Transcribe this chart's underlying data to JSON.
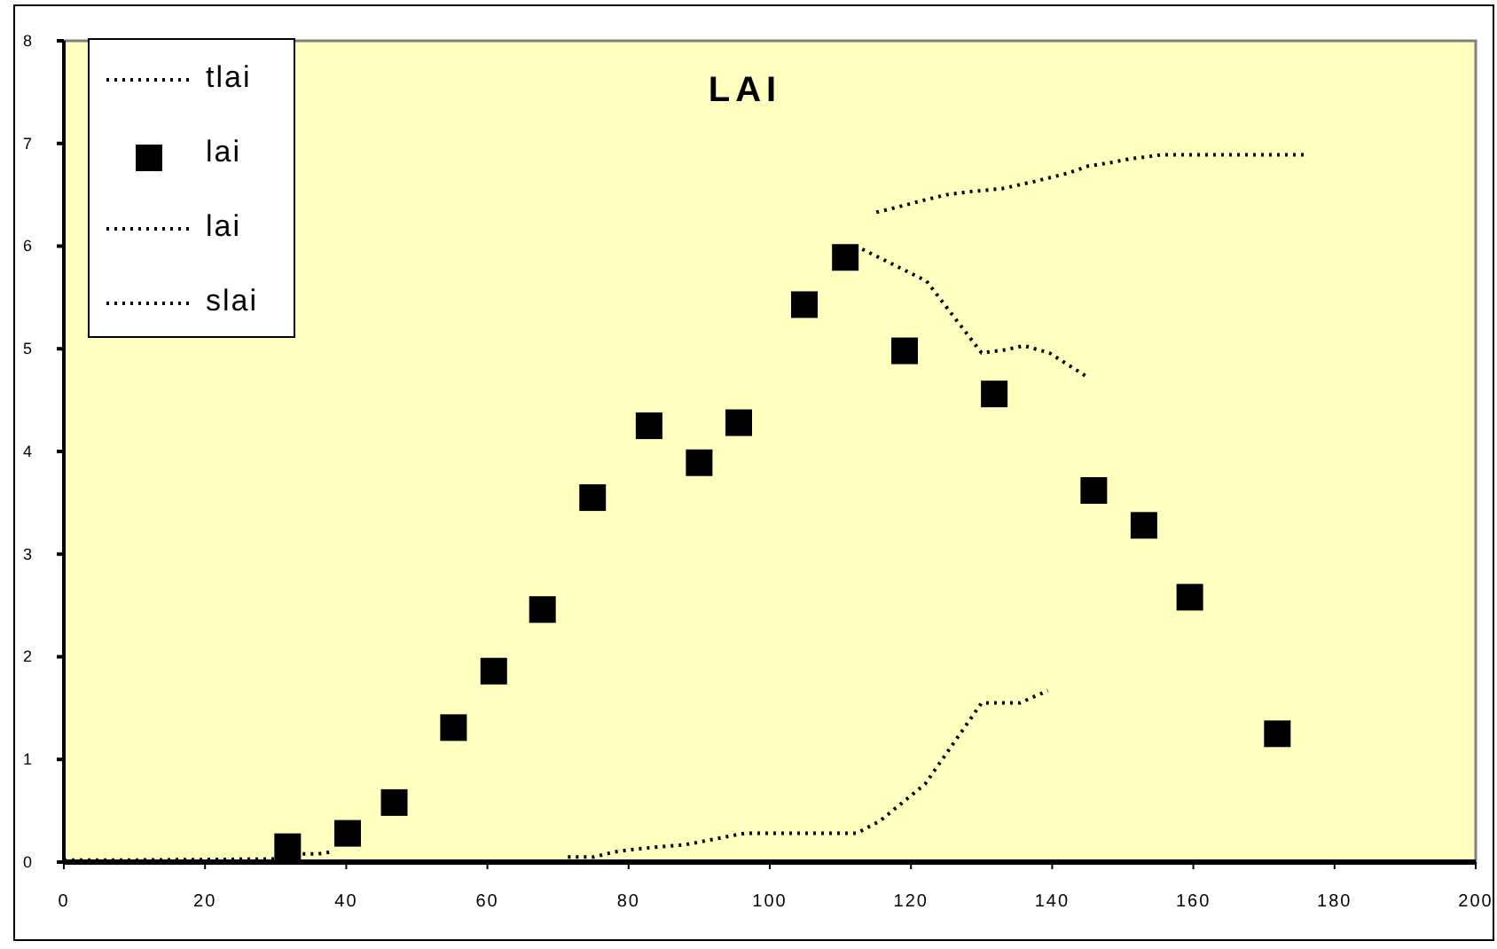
{
  "chart_data": {
    "type": "line",
    "title": "LAI",
    "xlim": [
      0,
      200
    ],
    "xticks": [
      0,
      20,
      40,
      60,
      80,
      100,
      120,
      140,
      160,
      180,
      200
    ],
    "ylim": [
      0,
      8
    ],
    "yticks": [
      0,
      1,
      2,
      3,
      4,
      5,
      6,
      7,
      8
    ],
    "grid": false,
    "legend": "top left",
    "line_style": "dotted",
    "series": [
      {
        "name": "tlai",
        "color": "#000000",
        "x": [
          115.1,
          118.1,
          121.4,
          125,
          128.3,
          132.9,
          137.5,
          142.2,
          145.1,
          148,
          151,
          153.4,
          155.5,
          176
        ],
        "values": [
          6.33,
          6.38,
          6.44,
          6.5,
          6.53,
          6.56,
          6.63,
          6.71,
          6.78,
          6.81,
          6.85,
          6.87,
          6.89,
          6.89
        ]
      },
      {
        "name": "lai",
        "type": "scatter",
        "marker": "square",
        "color": "#000000",
        "x": [
          31.7,
          40.2,
          46.8,
          55.2,
          60.9,
          67.8,
          74.9,
          82.9,
          90,
          95.6,
          104.9,
          110.7,
          119.1,
          131.8,
          145.9,
          153,
          159.5,
          171.9
        ],
        "values": [
          0.15,
          0.28,
          0.58,
          1.31,
          1.86,
          2.46,
          3.55,
          4.25,
          3.89,
          4.28,
          5.43,
          5.89,
          4.98,
          4.56,
          3.62,
          3.28,
          2.58,
          1.25
        ]
      },
      {
        "name": "lai",
        "color": "#000000",
        "x": [
          0,
          10,
          30,
          33,
          36,
          38,
          80,
          113.1,
          122.2,
          130,
          133.4,
          136,
          139.6,
          145.1
        ],
        "values": [
          0.02,
          0.02,
          0.03,
          0.08,
          0.08,
          0.1,
          null,
          5.97,
          5.66,
          4.96,
          4.99,
          5.03,
          4.96,
          4.72
        ]
      },
      {
        "name": "slai",
        "color": "#000000",
        "x": [
          71.4,
          75.1,
          78.1,
          81.4,
          88.1,
          95.6,
          96.5,
          112.3,
          115.6,
          122,
          130,
          135.4,
          139.4
        ],
        "values": [
          0.05,
          0.05,
          0.1,
          0.13,
          0.17,
          0.27,
          0.28,
          0.28,
          0.4,
          0.76,
          1.55,
          1.55,
          1.67
        ]
      }
    ]
  }
}
